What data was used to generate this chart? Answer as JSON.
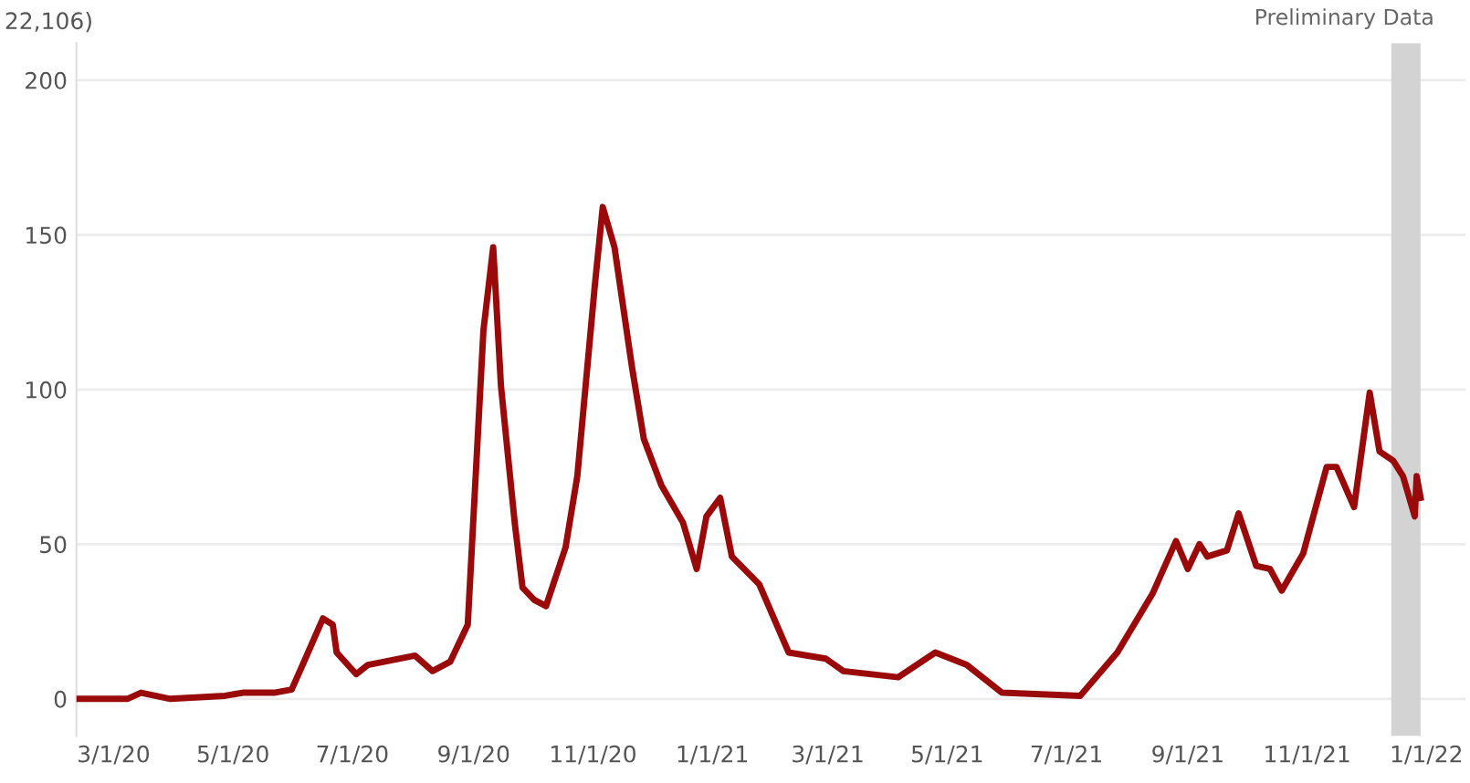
{
  "chart_data": {
    "type": "line",
    "title": "22,106)",
    "x": [
      "2020-02-11",
      "2020-03-08",
      "2020-03-15",
      "2020-03-30",
      "2020-04-27",
      "2020-05-06",
      "2020-05-22",
      "2020-05-31",
      "2020-06-07",
      "2020-06-16",
      "2020-06-21",
      "2020-06-23",
      "2020-07-03",
      "2020-07-09",
      "2020-08-02",
      "2020-08-11",
      "2020-08-20",
      "2020-08-29",
      "2020-09-06",
      "2020-09-11",
      "2020-09-15",
      "2020-09-22",
      "2020-09-26",
      "2020-10-02",
      "2020-10-08",
      "2020-10-18",
      "2020-10-24",
      "2020-11-02",
      "2020-11-06",
      "2020-11-12",
      "2020-11-21",
      "2020-11-27",
      "2020-12-06",
      "2020-12-17",
      "2020-12-24",
      "2020-12-29",
      "2021-01-05",
      "2021-01-11",
      "2021-01-25",
      "2021-02-09",
      "2021-02-28",
      "2021-03-09",
      "2021-04-06",
      "2021-04-25",
      "2021-05-11",
      "2021-05-29",
      "2021-07-08",
      "2021-07-27",
      "2021-08-14",
      "2021-08-26",
      "2021-09-01",
      "2021-09-07",
      "2021-09-11",
      "2021-09-21",
      "2021-09-27",
      "2021-10-06",
      "2021-10-13",
      "2021-10-19",
      "2021-10-30",
      "2021-11-11",
      "2021-11-16",
      "2021-11-25",
      "2021-12-03",
      "2021-12-08",
      "2021-12-15",
      "2021-12-20",
      "2021-12-26",
      "2021-12-27",
      "2021-12-29"
    ],
    "series": [
      {
        "color": "#9b0a0a",
        "values": [
          0,
          0,
          2,
          0,
          1,
          2,
          2,
          3,
          13,
          26,
          24,
          15,
          8,
          11,
          14,
          9,
          12,
          24,
          119,
          146,
          101,
          57,
          36,
          32,
          30,
          49,
          72,
          134,
          159,
          146,
          107,
          84,
          69,
          57,
          42,
          59,
          65,
          46,
          37,
          15,
          13,
          9,
          7,
          15,
          11,
          2,
          1,
          15,
          34,
          51,
          42,
          50,
          46,
          48,
          60,
          43,
          42,
          35,
          47,
          75,
          75,
          62,
          99,
          80,
          77,
          72,
          59,
          72,
          65
        ]
      }
    ],
    "xlim": [
      "2020-02-11",
      "2022-01-21"
    ],
    "ylim": [
      -12,
      212
    ],
    "yticks": [
      0,
      50,
      100,
      150,
      200
    ],
    "xticks": [
      {
        "value": "2020-03-01",
        "label": "3/1/20"
      },
      {
        "value": "2020-05-01",
        "label": "5/1/20"
      },
      {
        "value": "2020-07-01",
        "label": "7/1/20"
      },
      {
        "value": "2020-09-01",
        "label": "9/1/20"
      },
      {
        "value": "2020-11-01",
        "label": "11/1/20"
      },
      {
        "value": "2021-01-01",
        "label": "1/1/21"
      },
      {
        "value": "2021-03-01",
        "label": "3/1/21"
      },
      {
        "value": "2021-05-01",
        "label": "5/1/21"
      },
      {
        "value": "2021-07-01",
        "label": "7/1/21"
      },
      {
        "value": "2021-09-01",
        "label": "9/1/21"
      },
      {
        "value": "2021-11-01",
        "label": "11/1/21"
      },
      {
        "value": "2022-01-01",
        "label": "1/1/22"
      }
    ],
    "bands": [
      {
        "axis": "x",
        "from": "2021-12-14",
        "to": "2021-12-29",
        "label": "Preliminary Data",
        "color": "#d3d3d3"
      }
    ],
    "grid": "y",
    "line_style": "solid",
    "marker": "none"
  }
}
